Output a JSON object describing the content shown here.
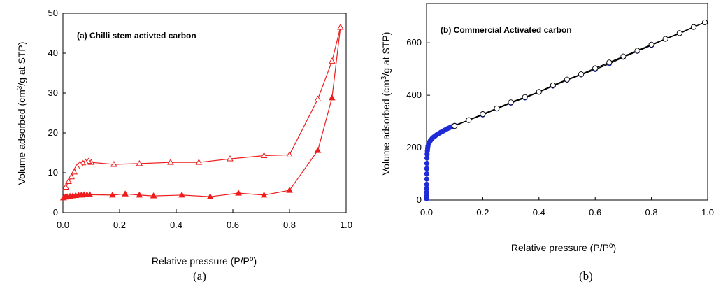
{
  "chart_data": [
    {
      "type": "line",
      "panel_title": "(a) Chilli stem activted carbon",
      "caption": "(a)",
      "xlabel": "Relative pressure (P/P",
      "xlabel_sup": "o",
      "xlabel_end": ")",
      "ylabel_pre": "Volume adsorbed (cm",
      "ylabel_sup": "3",
      "ylabel_post": "/g at STP)",
      "xlim": [
        0,
        1.0
      ],
      "ylim": [
        0,
        50
      ],
      "xticks": [
        "0.0",
        "0.2",
        "0.4",
        "0.6",
        "0.8",
        "1.0"
      ],
      "yticks": [
        "0",
        "10",
        "20",
        "30",
        "40",
        "50"
      ],
      "series": [
        {
          "marker": "filled-triangle",
          "color": "#ee1c1c",
          "x": [
            0.002,
            0.008,
            0.015,
            0.025,
            0.035,
            0.045,
            0.055,
            0.065,
            0.075,
            0.085,
            0.095,
            0.175,
            0.22,
            0.27,
            0.32,
            0.42,
            0.52,
            0.62,
            0.71,
            0.8,
            0.9,
            0.95,
            0.98
          ],
          "y": [
            3.7,
            3.9,
            4.0,
            4.1,
            4.2,
            4.3,
            4.4,
            4.4,
            4.5,
            4.5,
            4.5,
            4.4,
            4.7,
            4.4,
            4.2,
            4.4,
            4.0,
            4.9,
            4.4,
            5.6,
            15.6,
            28.8,
            46.5
          ]
        },
        {
          "marker": "open-triangle",
          "color": "#ee1c1c",
          "x": [
            0.98,
            0.95,
            0.9,
            0.8,
            0.71,
            0.59,
            0.48,
            0.38,
            0.27,
            0.18,
            0.1,
            0.09,
            0.08,
            0.07,
            0.06,
            0.05,
            0.04,
            0.03,
            0.02,
            0.01
          ],
          "y": [
            46.5,
            38.0,
            28.5,
            14.5,
            14.3,
            13.5,
            12.6,
            12.6,
            12.3,
            12.1,
            12.6,
            12.9,
            12.7,
            12.5,
            12.2,
            11.5,
            10.2,
            9.0,
            7.8,
            6.4
          ]
        }
      ]
    },
    {
      "type": "line",
      "panel_title": "(b) Commercial Activated carbon",
      "caption": "(b)",
      "xlabel": "Relative pressure (P/P",
      "xlabel_sup": "o",
      "xlabel_end": ")",
      "ylabel_pre": "Volume adsorbed (cm",
      "ylabel_sup": "3",
      "ylabel_post": "/g at STP)",
      "xlim": [
        0,
        1.0
      ],
      "ylim": [
        0,
        750
      ],
      "xticks": [
        "0.0",
        "0.2",
        "0.4",
        "0.6",
        "0.8",
        "1.0"
      ],
      "yticks": [
        "0",
        "200",
        "400",
        "600"
      ],
      "series": [
        {
          "marker": "filled-circle",
          "color": "#1f2bd6",
          "x": [
            0.0002,
            0.0003,
            0.0004,
            0.0005,
            0.0006,
            0.0008,
            0.001,
            0.001,
            0.0012,
            0.0015,
            0.002,
            0.003,
            0.004,
            0.005,
            0.007,
            0.01,
            0.013,
            0.016,
            0.02,
            0.025,
            0.03,
            0.035,
            0.04,
            0.045,
            0.05,
            0.055,
            0.06,
            0.065,
            0.07,
            0.075,
            0.08,
            0.085,
            0.09,
            0.095,
            0.1,
            0.15,
            0.2,
            0.25,
            0.3,
            0.35,
            0.4,
            0.45,
            0.5,
            0.55,
            0.6,
            0.65,
            0.7,
            0.75,
            0.8,
            0.85,
            0.9,
            0.95
          ],
          "y": [
            5,
            15,
            30,
            45,
            60,
            80,
            100,
            120,
            140,
            160,
            175,
            188,
            198,
            206,
            214,
            220,
            226,
            230,
            235,
            240,
            244,
            248,
            252,
            255,
            258,
            261,
            264,
            267,
            270,
            273,
            275,
            278,
            280,
            282,
            285,
            305,
            325,
            348,
            370,
            390,
            412,
            435,
            458,
            478,
            498,
            520,
            545,
            568,
            590,
            615,
            635,
            660
          ]
        },
        {
          "marker": "open-circle",
          "color": "#000000",
          "x": [
            0.99,
            0.95,
            0.9,
            0.85,
            0.8,
            0.75,
            0.7,
            0.65,
            0.6,
            0.55,
            0.5,
            0.45,
            0.4,
            0.35,
            0.3,
            0.25,
            0.2,
            0.15,
            0.1
          ],
          "y": [
            678,
            660,
            637,
            615,
            593,
            570,
            548,
            525,
            503,
            480,
            460,
            438,
            413,
            393,
            373,
            350,
            328,
            305,
            283
          ]
        }
      ]
    }
  ]
}
